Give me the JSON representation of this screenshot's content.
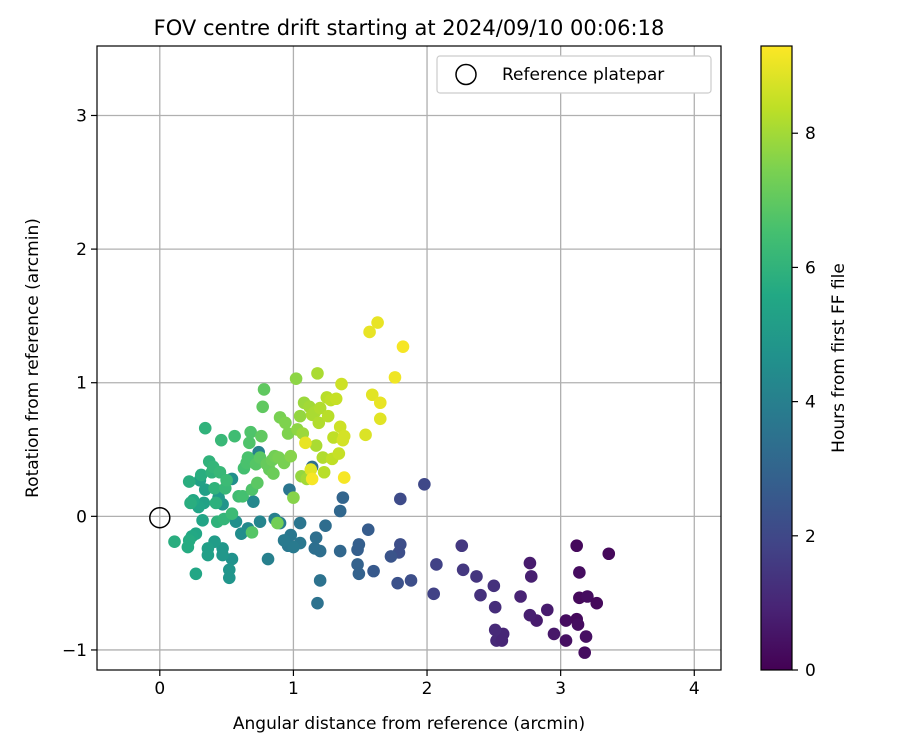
{
  "chart_data": {
    "type": "scatter",
    "title": "FOV centre drift starting at 2024/09/10 00:06:18",
    "xlabel": "Angular distance from reference (arcmin)",
    "ylabel": "Rotation from reference (arcmin)",
    "xlim": [
      -0.47,
      4.2
    ],
    "ylim": [
      -1.15,
      3.52
    ],
    "xticks": [
      "0",
      "1",
      "2",
      "3",
      "4"
    ],
    "yticks": [
      "−1",
      "0",
      "1",
      "2",
      "3"
    ],
    "grid": true,
    "legend": {
      "placement": "top-right",
      "entries": [
        "Reference platepar"
      ]
    },
    "reference_point": {
      "x": 0,
      "y": 0,
      "marker": "open-circle"
    },
    "colorbar": {
      "label": "Hours from first FF file",
      "colormap": "viridis",
      "range": [
        0,
        9.3
      ],
      "ticks": [
        "0",
        "2",
        "4",
        "6",
        "8"
      ]
    },
    "series": [
      {
        "points": [
          {
            "x": 3.12,
            "y": -0.22,
            "h": 0.2
          },
          {
            "x": 3.36,
            "y": -0.28,
            "h": 0.2
          },
          {
            "x": 3.14,
            "y": -0.42,
            "h": 0.3
          },
          {
            "x": 3.04,
            "y": -0.78,
            "h": 0.3
          },
          {
            "x": 3.12,
            "y": -0.77,
            "h": 0.2
          },
          {
            "x": 3.14,
            "y": -0.61,
            "h": 0.2
          },
          {
            "x": 3.2,
            "y": -0.6,
            "h": 0.3
          },
          {
            "x": 3.27,
            "y": -0.65,
            "h": 0.2
          },
          {
            "x": 3.13,
            "y": -0.81,
            "h": 0.3
          },
          {
            "x": 3.19,
            "y": -0.9,
            "h": 0.4
          },
          {
            "x": 3.04,
            "y": -0.93,
            "h": 0.4
          },
          {
            "x": 3.18,
            "y": -1.02,
            "h": 0.3
          },
          {
            "x": 2.95,
            "y": -0.88,
            "h": 0.6
          },
          {
            "x": 2.9,
            "y": -0.7,
            "h": 0.7
          },
          {
            "x": 2.82,
            "y": -0.78,
            "h": 0.7
          },
          {
            "x": 2.77,
            "y": -0.74,
            "h": 0.8
          },
          {
            "x": 2.77,
            "y": -0.35,
            "h": 0.7
          },
          {
            "x": 2.78,
            "y": -0.45,
            "h": 0.8
          },
          {
            "x": 2.7,
            "y": -0.6,
            "h": 0.9
          },
          {
            "x": 2.57,
            "y": -0.88,
            "h": 1.0
          },
          {
            "x": 2.52,
            "y": -0.93,
            "h": 1.1
          },
          {
            "x": 2.56,
            "y": -0.93,
            "h": 1.0
          },
          {
            "x": 2.51,
            "y": -0.85,
            "h": 1.1
          },
          {
            "x": 2.51,
            "y": -0.68,
            "h": 1.2
          },
          {
            "x": 2.5,
            "y": -0.52,
            "h": 1.3
          },
          {
            "x": 2.4,
            "y": -0.59,
            "h": 1.3
          },
          {
            "x": 2.37,
            "y": -0.45,
            "h": 1.4
          },
          {
            "x": 2.27,
            "y": -0.4,
            "h": 1.5
          },
          {
            "x": 2.26,
            "y": -0.22,
            "h": 1.5
          },
          {
            "x": 2.07,
            "y": -0.36,
            "h": 1.8
          },
          {
            "x": 2.05,
            "y": -0.58,
            "h": 1.8
          },
          {
            "x": 1.98,
            "y": 0.24,
            "h": 2.0
          },
          {
            "x": 1.8,
            "y": 0.13,
            "h": 2.1
          },
          {
            "x": 1.8,
            "y": -0.21,
            "h": 2.2
          },
          {
            "x": 1.79,
            "y": -0.27,
            "h": 2.2
          },
          {
            "x": 1.78,
            "y": -0.5,
            "h": 2.3
          },
          {
            "x": 1.88,
            "y": -0.48,
            "h": 2.2
          },
          {
            "x": 1.73,
            "y": -0.3,
            "h": 2.4
          },
          {
            "x": 1.6,
            "y": -0.41,
            "h": 2.6
          },
          {
            "x": 1.56,
            "y": -0.1,
            "h": 2.7
          },
          {
            "x": 1.49,
            "y": -0.21,
            "h": 2.8
          },
          {
            "x": 1.48,
            "y": -0.25,
            "h": 2.8
          },
          {
            "x": 1.48,
            "y": -0.36,
            "h": 2.9
          },
          {
            "x": 1.49,
            "y": -0.43,
            "h": 2.9
          },
          {
            "x": 1.37,
            "y": 0.14,
            "h": 3.0
          },
          {
            "x": 1.35,
            "y": 0.04,
            "h": 3.1
          },
          {
            "x": 1.35,
            "y": -0.26,
            "h": 3.1
          },
          {
            "x": 1.24,
            "y": -0.07,
            "h": 3.3
          },
          {
            "x": 1.2,
            "y": -0.26,
            "h": 3.4
          },
          {
            "x": 1.16,
            "y": -0.24,
            "h": 3.4
          },
          {
            "x": 1.17,
            "y": -0.16,
            "h": 3.4
          },
          {
            "x": 1.2,
            "y": -0.48,
            "h": 3.5
          },
          {
            "x": 1.18,
            "y": -0.65,
            "h": 3.5
          },
          {
            "x": 1.14,
            "y": 0.37,
            "h": 3.3
          },
          {
            "x": 1.05,
            "y": -0.05,
            "h": 3.6
          },
          {
            "x": 1.05,
            "y": -0.2,
            "h": 3.7
          },
          {
            "x": 0.98,
            "y": -0.14,
            "h": 3.7
          },
          {
            "x": 0.96,
            "y": -0.22,
            "h": 3.7
          },
          {
            "x": 1.0,
            "y": -0.23,
            "h": 3.8
          },
          {
            "x": 0.97,
            "y": 0.2,
            "h": 3.6
          },
          {
            "x": 0.93,
            "y": -0.18,
            "h": 3.8
          },
          {
            "x": 0.9,
            "y": -0.05,
            "h": 3.9
          },
          {
            "x": 0.86,
            "y": -0.02,
            "h": 4.0
          },
          {
            "x": 0.81,
            "y": -0.32,
            "h": 4.0
          },
          {
            "x": 0.75,
            "y": -0.04,
            "h": 4.2
          },
          {
            "x": 0.74,
            "y": 0.48,
            "h": 4.1
          },
          {
            "x": 0.7,
            "y": 0.11,
            "h": 4.3
          },
          {
            "x": 0.66,
            "y": -0.09,
            "h": 4.4
          },
          {
            "x": 0.61,
            "y": -0.13,
            "h": 4.5
          },
          {
            "x": 0.57,
            "y": -0.04,
            "h": 4.6
          },
          {
            "x": 0.54,
            "y": -0.32,
            "h": 4.7
          },
          {
            "x": 0.52,
            "y": -0.4,
            "h": 4.8
          },
          {
            "x": 0.52,
            "y": -0.46,
            "h": 4.8
          },
          {
            "x": 0.54,
            "y": 0.28,
            "h": 4.6
          },
          {
            "x": 0.47,
            "y": 0.09,
            "h": 4.8
          },
          {
            "x": 0.47,
            "y": -0.24,
            "h": 4.9
          },
          {
            "x": 0.47,
            "y": -0.29,
            "h": 4.9
          },
          {
            "x": 0.44,
            "y": 0.14,
            "h": 5.0
          },
          {
            "x": 0.41,
            "y": -0.19,
            "h": 5.1
          },
          {
            "x": 0.36,
            "y": -0.24,
            "h": 5.2
          },
          {
            "x": 0.36,
            "y": -0.29,
            "h": 5.2
          },
          {
            "x": 0.34,
            "y": 0.2,
            "h": 5.2
          },
          {
            "x": 0.33,
            "y": 0.1,
            "h": 5.3
          },
          {
            "x": 0.32,
            "y": -0.03,
            "h": 5.4
          },
          {
            "x": 0.3,
            "y": 0.27,
            "h": 5.3
          },
          {
            "x": 0.29,
            "y": 0.07,
            "h": 5.4
          },
          {
            "x": 0.27,
            "y": -0.13,
            "h": 5.5
          },
          {
            "x": 0.27,
            "y": -0.43,
            "h": 5.5
          },
          {
            "x": 0.25,
            "y": 0.12,
            "h": 5.6
          },
          {
            "x": 0.24,
            "y": -0.15,
            "h": 5.6
          },
          {
            "x": 0.22,
            "y": -0.18,
            "h": 5.7
          },
          {
            "x": 0.21,
            "y": -0.23,
            "h": 5.7
          },
          {
            "x": 0.11,
            "y": -0.19,
            "h": 5.8
          },
          {
            "x": 0.22,
            "y": 0.26,
            "h": 5.8
          },
          {
            "x": 0.23,
            "y": 0.1,
            "h": 5.8
          },
          {
            "x": 0.31,
            "y": 0.31,
            "h": 5.8
          },
          {
            "x": 0.34,
            "y": 0.66,
            "h": 6.0
          },
          {
            "x": 0.37,
            "y": 0.41,
            "h": 6.0
          },
          {
            "x": 0.39,
            "y": 0.33,
            "h": 6.0
          },
          {
            "x": 0.4,
            "y": 0.37,
            "h": 6.1
          },
          {
            "x": 0.41,
            "y": 0.21,
            "h": 6.0
          },
          {
            "x": 0.42,
            "y": 0.1,
            "h": 5.9
          },
          {
            "x": 0.43,
            "y": -0.04,
            "h": 6.0
          },
          {
            "x": 0.45,
            "y": 0.33,
            "h": 6.2
          },
          {
            "x": 0.46,
            "y": 0.57,
            "h": 6.2
          },
          {
            "x": 0.48,
            "y": -0.02,
            "h": 6.1
          },
          {
            "x": 0.49,
            "y": 0.21,
            "h": 6.2
          },
          {
            "x": 0.5,
            "y": 0.27,
            "h": 6.3
          },
          {
            "x": 0.54,
            "y": 0.02,
            "h": 6.3
          },
          {
            "x": 0.56,
            "y": 0.6,
            "h": 6.4
          },
          {
            "x": 0.59,
            "y": 0.15,
            "h": 6.4
          },
          {
            "x": 0.62,
            "y": 0.15,
            "h": 6.5
          },
          {
            "x": 0.63,
            "y": 0.36,
            "h": 6.5
          },
          {
            "x": 0.65,
            "y": 0.4,
            "h": 6.6
          },
          {
            "x": 0.66,
            "y": 0.44,
            "h": 6.6
          },
          {
            "x": 0.67,
            "y": 0.55,
            "h": 6.7
          },
          {
            "x": 0.68,
            "y": 0.63,
            "h": 6.7
          },
          {
            "x": 0.69,
            "y": 0.2,
            "h": 6.7
          },
          {
            "x": 0.69,
            "y": -0.12,
            "h": 6.8
          },
          {
            "x": 0.72,
            "y": 0.39,
            "h": 6.8
          },
          {
            "x": 0.73,
            "y": 0.25,
            "h": 6.9
          },
          {
            "x": 0.75,
            "y": 0.44,
            "h": 6.9
          },
          {
            "x": 0.76,
            "y": 0.6,
            "h": 7.0
          },
          {
            "x": 0.77,
            "y": 0.82,
            "h": 7.0
          },
          {
            "x": 0.78,
            "y": 0.95,
            "h": 7.0
          },
          {
            "x": 0.8,
            "y": 0.39,
            "h": 7.1
          },
          {
            "x": 0.82,
            "y": 0.35,
            "h": 7.1
          },
          {
            "x": 0.84,
            "y": 0.42,
            "h": 7.2
          },
          {
            "x": 0.85,
            "y": 0.32,
            "h": 7.2
          },
          {
            "x": 0.86,
            "y": 0.45,
            "h": 7.3
          },
          {
            "x": 0.88,
            "y": -0.05,
            "h": 7.3
          },
          {
            "x": 0.89,
            "y": 0.44,
            "h": 7.4
          },
          {
            "x": 0.9,
            "y": 0.74,
            "h": 7.4
          },
          {
            "x": 0.93,
            "y": 0.4,
            "h": 7.4
          },
          {
            "x": 0.94,
            "y": 0.7,
            "h": 7.5
          },
          {
            "x": 0.96,
            "y": 0.62,
            "h": 7.5
          },
          {
            "x": 0.98,
            "y": 0.45,
            "h": 7.6
          },
          {
            "x": 1.0,
            "y": 0.14,
            "h": 7.6
          },
          {
            "x": 1.02,
            "y": 1.03,
            "h": 7.7
          },
          {
            "x": 1.03,
            "y": 0.65,
            "h": 7.7
          },
          {
            "x": 1.05,
            "y": 0.75,
            "h": 7.8
          },
          {
            "x": 1.06,
            "y": 0.3,
            "h": 7.8
          },
          {
            "x": 1.07,
            "y": 0.62,
            "h": 7.9
          },
          {
            "x": 1.08,
            "y": 0.85,
            "h": 7.9
          },
          {
            "x": 1.1,
            "y": 0.28,
            "h": 8.0
          },
          {
            "x": 1.12,
            "y": 0.82,
            "h": 8.0
          },
          {
            "x": 1.14,
            "y": 0.76,
            "h": 8.1
          },
          {
            "x": 1.16,
            "y": 0.78,
            "h": 8.1
          },
          {
            "x": 1.17,
            "y": 0.53,
            "h": 8.1
          },
          {
            "x": 1.18,
            "y": 1.07,
            "h": 8.1
          },
          {
            "x": 1.19,
            "y": 0.7,
            "h": 8.2
          },
          {
            "x": 1.2,
            "y": 0.81,
            "h": 8.2
          },
          {
            "x": 1.22,
            "y": 0.44,
            "h": 8.2
          },
          {
            "x": 1.23,
            "y": 0.33,
            "h": 8.3
          },
          {
            "x": 1.25,
            "y": 0.89,
            "h": 8.3
          },
          {
            "x": 1.26,
            "y": 0.75,
            "h": 8.3
          },
          {
            "x": 1.28,
            "y": 0.87,
            "h": 8.4
          },
          {
            "x": 1.29,
            "y": 0.43,
            "h": 8.4
          },
          {
            "x": 1.3,
            "y": 0.59,
            "h": 8.4
          },
          {
            "x": 1.32,
            "y": 0.88,
            "h": 8.5
          },
          {
            "x": 1.34,
            "y": 0.47,
            "h": 8.5
          },
          {
            "x": 1.35,
            "y": 0.67,
            "h": 8.6
          },
          {
            "x": 1.36,
            "y": 0.99,
            "h": 8.6
          },
          {
            "x": 1.37,
            "y": 0.57,
            "h": 8.7
          },
          {
            "x": 1.38,
            "y": 0.6,
            "h": 8.7
          },
          {
            "x": 1.09,
            "y": 0.55,
            "h": 9.0
          },
          {
            "x": 1.13,
            "y": 0.35,
            "h": 8.9
          },
          {
            "x": 1.14,
            "y": 0.28,
            "h": 9.2
          },
          {
            "x": 1.38,
            "y": 0.29,
            "h": 9.2
          },
          {
            "x": 1.54,
            "y": 0.61,
            "h": 8.8
          },
          {
            "x": 1.57,
            "y": 1.38,
            "h": 9.0
          },
          {
            "x": 1.59,
            "y": 0.91,
            "h": 8.9
          },
          {
            "x": 1.63,
            "y": 1.45,
            "h": 9.0
          },
          {
            "x": 1.65,
            "y": 0.73,
            "h": 8.9
          },
          {
            "x": 1.65,
            "y": 0.85,
            "h": 9.0
          },
          {
            "x": 1.76,
            "y": 1.04,
            "h": 9.1
          },
          {
            "x": 1.82,
            "y": 1.27,
            "h": 9.2
          }
        ]
      }
    ]
  }
}
